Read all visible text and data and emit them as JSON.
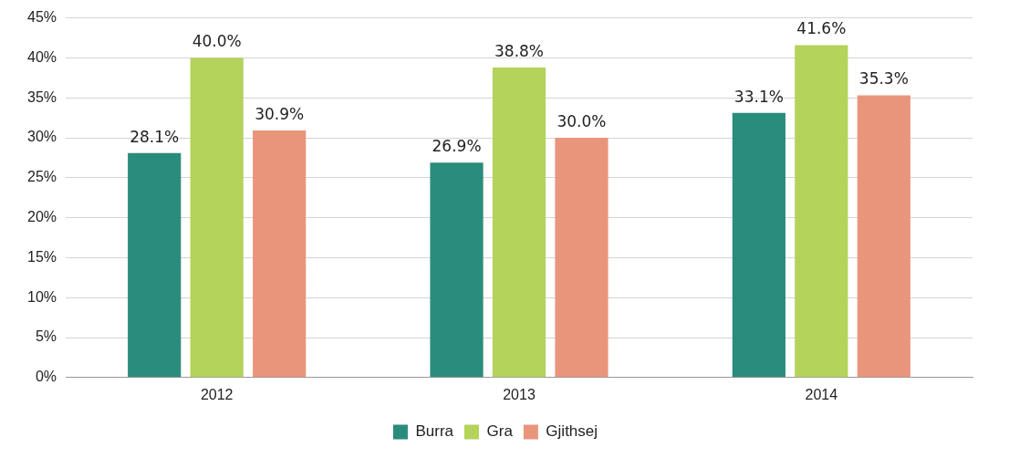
{
  "chart_data": {
    "type": "bar",
    "categories": [
      "2012",
      "2013",
      "2014"
    ],
    "series": [
      {
        "name": "Burra",
        "color": "#2a8c7c",
        "values": [
          28.1,
          26.9,
          33.1
        ],
        "value_labels": [
          "28.1%",
          "26.9%",
          "33.1%"
        ]
      },
      {
        "name": "Gra",
        "color": "#b3d35a",
        "values": [
          40.0,
          38.8,
          41.6
        ],
        "value_labels": [
          "40.0%",
          "38.8%",
          "41.6%"
        ]
      },
      {
        "name": "Gjithsej",
        "color": "#e9957c",
        "values": [
          30.9,
          30.0,
          35.3
        ],
        "value_labels": [
          "30.9%",
          "30.0%",
          "35.3%"
        ]
      }
    ],
    "ylim": [
      0,
      45
    ],
    "yticks": [
      {
        "value": 0,
        "label": "0%"
      },
      {
        "value": 5,
        "label": "5%"
      },
      {
        "value": 10,
        "label": "10%"
      },
      {
        "value": 15,
        "label": "15%"
      },
      {
        "value": 20,
        "label": "20%"
      },
      {
        "value": 25,
        "label": "25%"
      },
      {
        "value": 30,
        "label": "30%"
      },
      {
        "value": 35,
        "label": "35%"
      },
      {
        "value": 40,
        "label": "40%"
      },
      {
        "value": 45,
        "label": "45%"
      }
    ],
    "grid": "y",
    "legend": "bottom"
  }
}
